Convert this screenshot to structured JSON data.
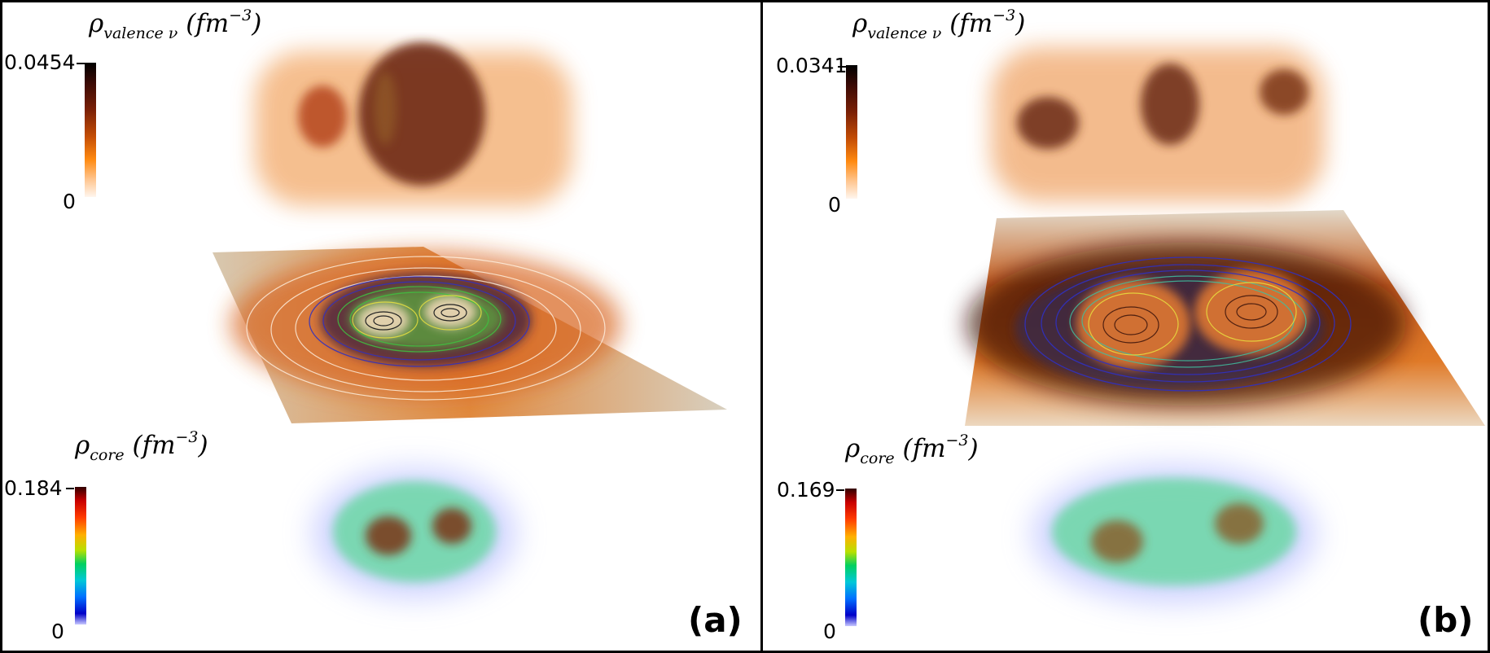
{
  "panels": {
    "a": {
      "label": "(a)",
      "valence": {
        "symbol": "ρ",
        "subscript": "valence ν",
        "units": "(fm",
        "exponent": "−3",
        "close": ")",
        "max": "0.0454",
        "min": "0"
      },
      "core": {
        "symbol": "ρ",
        "subscript": "core",
        "units": "(fm",
        "exponent": "−3",
        "close": ")",
        "max": "0.184",
        "min": "0"
      }
    },
    "b": {
      "label": "(b)",
      "valence": {
        "symbol": "ρ",
        "subscript": "valence ν",
        "units": "(fm",
        "exponent": "−3",
        "close": ")",
        "max": "0.0341",
        "min": "0"
      },
      "core": {
        "symbol": "ρ",
        "subscript": "core",
        "units": "(fm",
        "exponent": "−3",
        "close": ")",
        "max": "0.169",
        "min": "0"
      }
    }
  },
  "colormaps": {
    "valence": [
      "#000000",
      "#7a2006",
      "#ff8a10",
      "#fff6ee"
    ],
    "core": [
      "#300000",
      "#ff3a00",
      "#00d060",
      "#0000c8",
      "#c8c8ff"
    ]
  }
}
